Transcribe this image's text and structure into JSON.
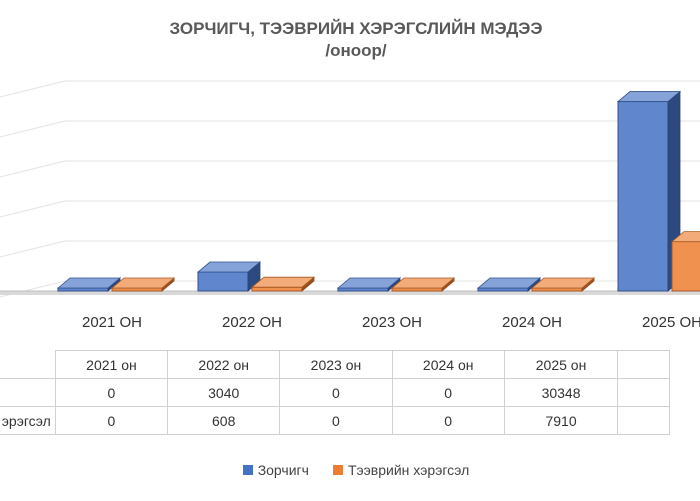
{
  "chart_data": {
    "type": "bar",
    "title": "ЗОРЧИГЧ, ТЭЭВРИЙН ХЭРЭГСЛИЙН МЭДЭЭ",
    "subtitle": "/оноор/",
    "categories": [
      "2021 ОН",
      "2022 ОН",
      "2023 ОН",
      "2024 ОН",
      "2025 ОН"
    ],
    "table_headers": [
      "2021 он",
      "2022 он",
      "2023 он",
      "2024 он",
      "2025 он"
    ],
    "series": [
      {
        "name": "Зорчигч",
        "row_label": "",
        "values": [
          0,
          3040,
          0,
          0,
          30348
        ],
        "color": "#4472c4"
      },
      {
        "name": "Тээврийн хэрэгсэл",
        "row_label": "эрэгсэл",
        "values": [
          0,
          608,
          0,
          0,
          7910
        ],
        "color": "#ed7d31"
      }
    ],
    "ylim": [
      0,
      33000
    ],
    "grid": true,
    "legend_position": "bottom",
    "overflow_value": 24000
  }
}
